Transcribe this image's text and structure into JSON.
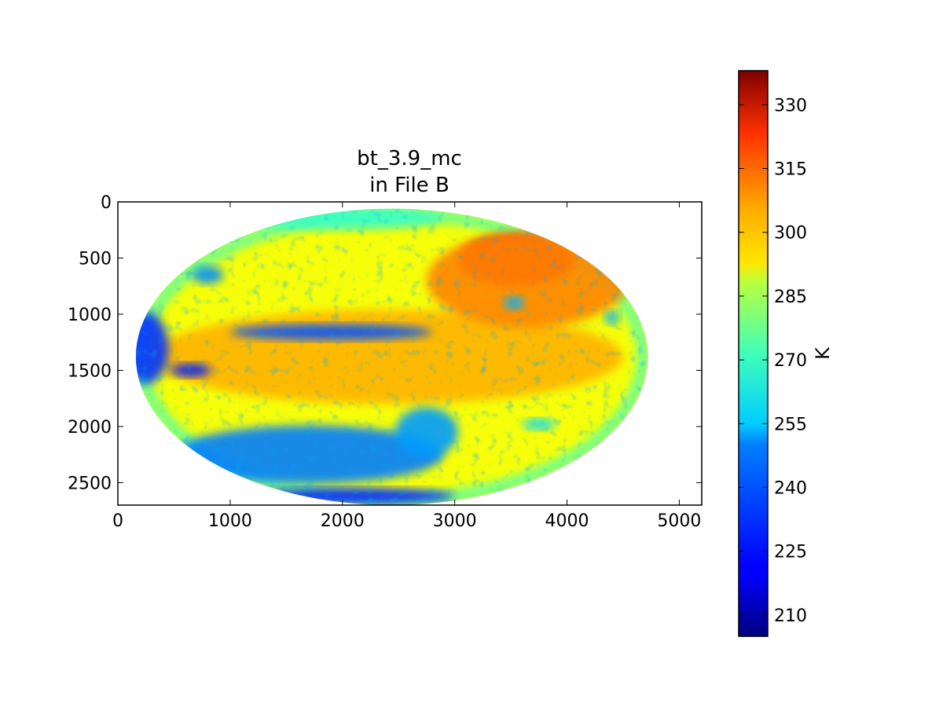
{
  "chart_data": {
    "type": "heatmap",
    "title_lines": [
      "bt_3.9_mc",
      "in File B"
    ],
    "xlabel": "",
    "ylabel": "",
    "x_ticks": [
      0,
      1000,
      2000,
      3000,
      4000,
      5000
    ],
    "y_ticks": [
      0,
      500,
      1000,
      1500,
      2000,
      2500
    ],
    "xlim": [
      0,
      5200
    ],
    "ylim": [
      2700,
      0
    ],
    "grid": false,
    "colormap": "jet",
    "colorbar": {
      "label": "K",
      "range": [
        205,
        338
      ],
      "ticks": [
        210,
        225,
        240,
        255,
        270,
        285,
        300,
        315,
        330
      ],
      "placement": "right"
    },
    "disk": {
      "center_x": 2440,
      "center_y": 1380,
      "radius_x": 2280,
      "radius_y": 1320,
      "background_value": 287
    },
    "regions": [
      {
        "name": "tropical belt",
        "cx": 2400,
        "cy": 1380,
        "rx": 2100,
        "ry": 420,
        "value": 298
      },
      {
        "name": "northern warm land",
        "cx": 3550,
        "cy": 520,
        "rx": 520,
        "ry": 230,
        "value": 322
      },
      {
        "name": "northern land margin",
        "cx": 3650,
        "cy": 700,
        "rx": 900,
        "ry": 420,
        "value": 304
      },
      {
        "name": "southern cold band",
        "cx": 1700,
        "cy": 2250,
        "rx": 1200,
        "ry": 260,
        "value": 238
      },
      {
        "name": "southern cloud patch",
        "cx": 2750,
        "cy": 2050,
        "rx": 280,
        "ry": 220,
        "value": 242
      },
      {
        "name": "equatorial cloud band",
        "cx": 1900,
        "cy": 1160,
        "rx": 900,
        "ry": 70,
        "value": 232
      },
      {
        "name": "western cold limb",
        "cx": 250,
        "cy": 1300,
        "rx": 200,
        "ry": 320,
        "value": 228
      },
      {
        "name": "west cloud cluster",
        "cx": 800,
        "cy": 650,
        "rx": 140,
        "ry": 80,
        "value": 240
      },
      {
        "name": "southwest cloud streak",
        "cx": 650,
        "cy": 1500,
        "rx": 180,
        "ry": 60,
        "value": 225
      },
      {
        "name": "polar south edge",
        "cx": 2100,
        "cy": 2620,
        "rx": 900,
        "ry": 70,
        "value": 226
      },
      {
        "name": "north cold cap",
        "cx": 2000,
        "cy": 150,
        "rx": 900,
        "ry": 100,
        "value": 262
      },
      {
        "name": "east cloud patch",
        "cx": 3530,
        "cy": 900,
        "rx": 90,
        "ry": 60,
        "value": 245
      },
      {
        "name": "far east cloud",
        "cx": 4400,
        "cy": 1030,
        "rx": 70,
        "ry": 60,
        "value": 245
      },
      {
        "name": "south pacific cloud",
        "cx": 3750,
        "cy": 1980,
        "rx": 150,
        "ry": 50,
        "value": 250
      }
    ]
  }
}
